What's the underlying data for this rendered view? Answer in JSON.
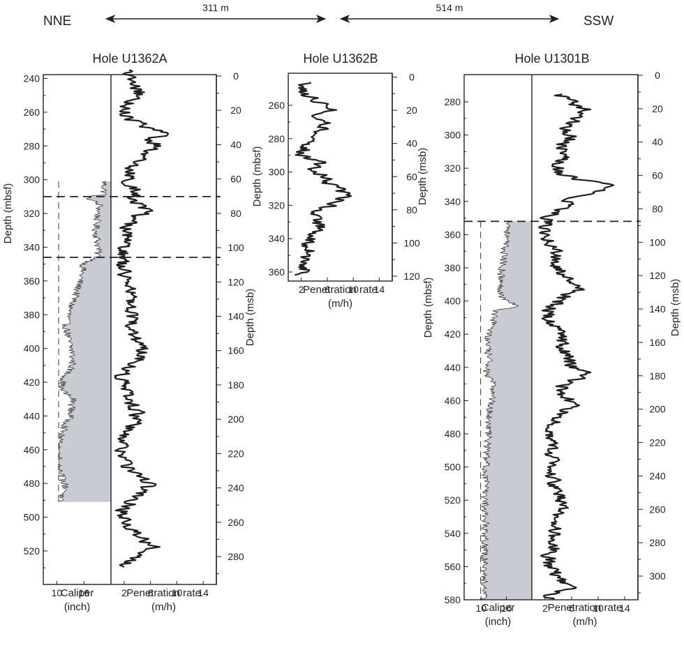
{
  "header": {
    "left_label": "NNE",
    "right_label": "SSW",
    "distance_1": "311 m",
    "distance_2": "514 m"
  },
  "colors": {
    "ink": "#231f20",
    "caliper_fill": "#c8ccd2",
    "background": "#ffffff"
  },
  "chart_data": [
    {
      "type": "line",
      "title": "Hole U1362A",
      "ylabel_left": "Depth (mbsf)",
      "ylabel_right": "Depth (msb)",
      "ylim_mbsf": [
        530,
        235
      ],
      "ylim_msb": [
        294,
        0
      ],
      "yticks_mbsf": [
        240,
        260,
        280,
        300,
        320,
        340,
        360,
        380,
        400,
        420,
        440,
        460,
        480,
        500,
        520
      ],
      "yticks_msb": [
        0,
        20,
        40,
        60,
        80,
        100,
        120,
        140,
        160,
        180,
        200,
        220,
        240,
        260,
        280
      ],
      "caliper": {
        "xlabel": [
          "Caliper",
          "(inch)"
        ],
        "xticks": [
          10,
          16
        ],
        "xlim": [
          7,
          22
        ],
        "interval_mbsf": [
          301,
          491
        ],
        "bit_size_inch": 10.4,
        "profile": [
          [
            301,
            20.5
          ],
          [
            309,
            20.5
          ],
          [
            310,
            16.5
          ],
          [
            315,
            19.5
          ],
          [
            322,
            19
          ],
          [
            330,
            18.6
          ],
          [
            340,
            19.2
          ],
          [
            346,
            19
          ],
          [
            350,
            16
          ],
          [
            356,
            15.5
          ],
          [
            366,
            14.5
          ],
          [
            376,
            13
          ],
          [
            386,
            12
          ],
          [
            394,
            12.5
          ],
          [
            402,
            13.4
          ],
          [
            410,
            13.5
          ],
          [
            418,
            11.5
          ],
          [
            424,
            10.8
          ],
          [
            430,
            13.6
          ],
          [
            440,
            13
          ],
          [
            448,
            11.5
          ],
          [
            454,
            10.5
          ],
          [
            462,
            10.3
          ],
          [
            470,
            10.5
          ],
          [
            478,
            11.3
          ],
          [
            484,
            12.2
          ],
          [
            488,
            10.6
          ],
          [
            491,
            10.5
          ]
        ]
      },
      "penetration": {
        "xlabel": [
          "Penetration rate",
          "(m/h)"
        ],
        "xticks": [
          2,
          6,
          10,
          14
        ],
        "xlim": [
          0,
          16
        ],
        "profile": [
          [
            235,
            2.5
          ],
          [
            242,
            3
          ],
          [
            248,
            4.5
          ],
          [
            256,
            2.5
          ],
          [
            262,
            2.2
          ],
          [
            268,
            5
          ],
          [
            272,
            8.5
          ],
          [
            276,
            5.5
          ],
          [
            280,
            7.5
          ],
          [
            286,
            4.5
          ],
          [
            292,
            3
          ],
          [
            300,
            2.5
          ],
          [
            306,
            4
          ],
          [
            312,
            3.5
          ],
          [
            318,
            5.5
          ],
          [
            324,
            3
          ],
          [
            330,
            2.5
          ],
          [
            338,
            2
          ],
          [
            346,
            1.8
          ],
          [
            352,
            1.5
          ],
          [
            360,
            2.5
          ],
          [
            366,
            3.5
          ],
          [
            372,
            2.5
          ],
          [
            380,
            2.8
          ],
          [
            386,
            3.2
          ],
          [
            392,
            3.5
          ],
          [
            398,
            4.5
          ],
          [
            404,
            5
          ],
          [
            410,
            3.5
          ],
          [
            416,
            1.5
          ],
          [
            420,
            1.8
          ],
          [
            426,
            2.5
          ],
          [
            432,
            3
          ],
          [
            438,
            4
          ],
          [
            444,
            3.5
          ],
          [
            450,
            2
          ],
          [
            456,
            1.5
          ],
          [
            462,
            2
          ],
          [
            470,
            2.5
          ],
          [
            476,
            4.5
          ],
          [
            480,
            6
          ],
          [
            484,
            4.5
          ],
          [
            490,
            3.5
          ],
          [
            496,
            1.8
          ],
          [
            502,
            2.5
          ],
          [
            508,
            3.5
          ],
          [
            514,
            5
          ],
          [
            518,
            6.5
          ],
          [
            522,
            4.5
          ],
          [
            526,
            3
          ],
          [
            530,
            2
          ]
        ]
      },
      "dashed_depths_mbsf": [
        310,
        346
      ]
    },
    {
      "type": "line",
      "title": "Hole U1362B",
      "ylabel_left": "Depth (mbsf)",
      "ylabel_right": "Depth (msb)",
      "ylim_mbsf": [
        366,
        246
      ],
      "ylim_msb": [
        127,
        0
      ],
      "yticks_mbsf": [
        260,
        280,
        300,
        320,
        340,
        360
      ],
      "yticks_msb": [
        0,
        20,
        40,
        60,
        80,
        100,
        120
      ],
      "penetration": {
        "xlabel": [
          "Penetration rate",
          "(m/h)"
        ],
        "xticks": [
          2,
          6,
          10,
          14
        ],
        "xlim": [
          0,
          16
        ],
        "profile": [
          [
            246,
            3
          ],
          [
            250,
            2
          ],
          [
            254,
            3
          ],
          [
            258,
            5
          ],
          [
            262,
            7.5
          ],
          [
            266,
            4
          ],
          [
            270,
            6.5
          ],
          [
            274,
            5
          ],
          [
            278,
            4.5
          ],
          [
            282,
            3
          ],
          [
            286,
            2.5
          ],
          [
            290,
            2
          ],
          [
            294,
            5
          ],
          [
            298,
            3.5
          ],
          [
            302,
            5.5
          ],
          [
            306,
            6
          ],
          [
            310,
            7.5
          ],
          [
            314,
            9
          ],
          [
            318,
            8
          ],
          [
            322,
            5
          ],
          [
            326,
            3.5
          ],
          [
            330,
            4.5
          ],
          [
            334,
            5
          ],
          [
            338,
            4
          ],
          [
            342,
            3
          ],
          [
            346,
            3.5
          ],
          [
            350,
            2.5
          ],
          [
            354,
            3
          ],
          [
            358,
            2.5
          ],
          [
            362,
            2
          ]
        ]
      }
    },
    {
      "type": "line",
      "title": "Hole U1301B",
      "ylabel_left": "Depth (mbsf)",
      "ylabel_right": "Depth (msb)",
      "ylim_mbsf": [
        580,
        265
      ],
      "ylim_msb": [
        328,
        0
      ],
      "yticks_mbsf": [
        280,
        300,
        320,
        340,
        360,
        380,
        400,
        420,
        440,
        460,
        480,
        500,
        520,
        540,
        560,
        580
      ],
      "yticks_msb": [
        0,
        20,
        40,
        60,
        80,
        100,
        120,
        140,
        160,
        180,
        200,
        220,
        240,
        260,
        280,
        300
      ],
      "caliper": {
        "xlabel": [
          "Caliper",
          "(inch)"
        ],
        "xticks": [
          10,
          16
        ],
        "xlim": [
          6,
          22
        ],
        "interval_mbsf": [
          352,
          580
        ],
        "bit_size_inch": 9.9,
        "profile": [
          [
            352,
            17
          ],
          [
            360,
            16
          ],
          [
            370,
            15.5
          ],
          [
            380,
            15
          ],
          [
            390,
            14.5
          ],
          [
            398,
            15
          ],
          [
            403,
            18.5
          ],
          [
            406,
            13.5
          ],
          [
            414,
            12.8
          ],
          [
            422,
            11.5
          ],
          [
            430,
            11.5
          ],
          [
            438,
            12
          ],
          [
            444,
            11
          ],
          [
            448,
            12.5
          ],
          [
            456,
            13
          ],
          [
            466,
            12
          ],
          [
            476,
            11.8
          ],
          [
            486,
            11.5
          ],
          [
            496,
            11.2
          ],
          [
            510,
            11
          ],
          [
            524,
            11
          ],
          [
            540,
            11
          ],
          [
            556,
            10.8
          ],
          [
            566,
            10.7
          ],
          [
            580,
            10.6
          ]
        ]
      },
      "penetration": {
        "xlabel": [
          "Penetration rate",
          "(m/h)"
        ],
        "xticks": [
          2,
          6,
          10,
          14
        ],
        "xlim": [
          0,
          16
        ],
        "profile": [
          [
            275,
            4
          ],
          [
            280,
            6
          ],
          [
            285,
            8
          ],
          [
            290,
            6.5
          ],
          [
            296,
            5
          ],
          [
            302,
            6
          ],
          [
            306,
            4.5
          ],
          [
            312,
            5
          ],
          [
            318,
            3.5
          ],
          [
            324,
            4.5
          ],
          [
            328,
            9
          ],
          [
            331,
            13
          ],
          [
            334,
            9
          ],
          [
            338,
            6
          ],
          [
            342,
            5.5
          ],
          [
            346,
            4
          ],
          [
            350,
            2.5
          ],
          [
            356,
            2
          ],
          [
            362,
            2.5
          ],
          [
            370,
            3.5
          ],
          [
            378,
            4
          ],
          [
            386,
            5
          ],
          [
            392,
            7
          ],
          [
            398,
            4.5
          ],
          [
            404,
            3
          ],
          [
            410,
            2.5
          ],
          [
            416,
            3.5
          ],
          [
            424,
            4.5
          ],
          [
            432,
            5
          ],
          [
            438,
            6
          ],
          [
            444,
            8
          ],
          [
            450,
            5
          ],
          [
            456,
            4
          ],
          [
            462,
            6.5
          ],
          [
            468,
            4
          ],
          [
            474,
            3.5
          ],
          [
            480,
            3
          ],
          [
            488,
            2.5
          ],
          [
            494,
            3
          ],
          [
            500,
            2.5
          ],
          [
            506,
            3
          ],
          [
            512,
            3.5
          ],
          [
            518,
            4.5
          ],
          [
            524,
            5
          ],
          [
            530,
            4
          ],
          [
            536,
            3.5
          ],
          [
            542,
            3
          ],
          [
            548,
            3.5
          ],
          [
            554,
            2.5
          ],
          [
            560,
            2.5
          ],
          [
            566,
            4
          ],
          [
            572,
            6
          ],
          [
            576,
            3
          ],
          [
            580,
            2.5
          ]
        ]
      },
      "dashed_depths_mbsf": [
        352
      ]
    }
  ]
}
